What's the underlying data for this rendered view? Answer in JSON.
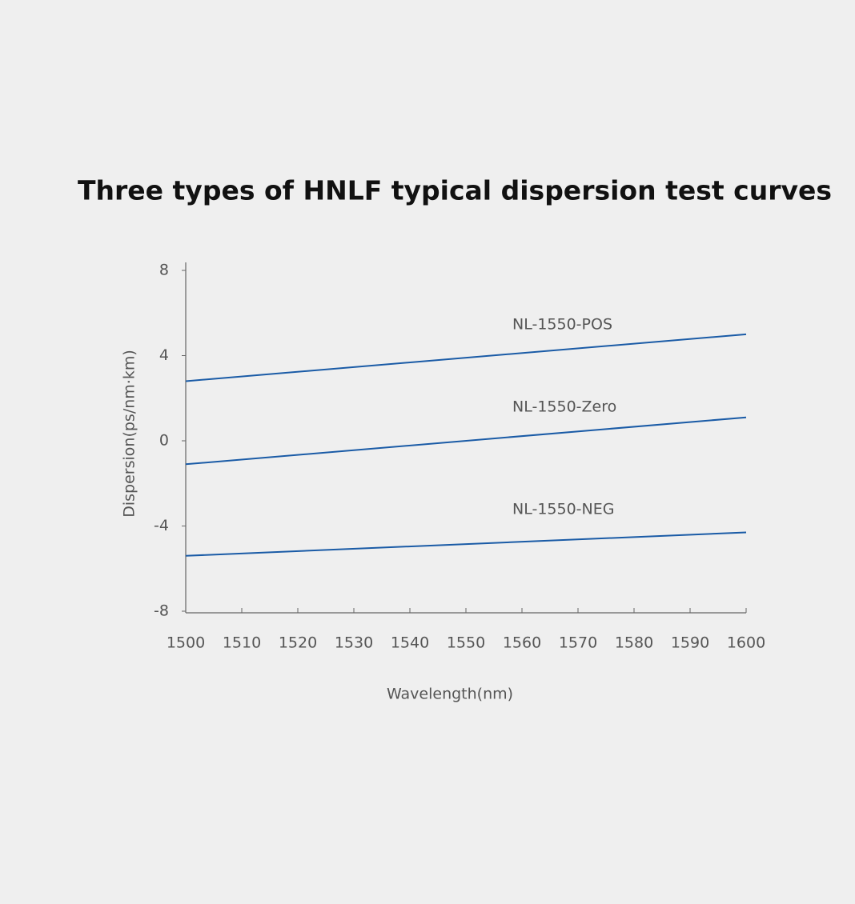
{
  "chart_data": {
    "type": "line",
    "title": "Three types of HNLF typical dispersion test curves",
    "x_label": "Wavelength(nm)",
    "y_label": "Dispersion(ps/nm·km)",
    "x": [
      1500,
      1600
    ],
    "series": [
      {
        "name": "NL-1550-POS",
        "color": "#1a5ba6",
        "values": [
          2.8,
          5.0
        ]
      },
      {
        "name": "NL-1550-Zero",
        "color": "#1a5ba6",
        "values": [
          -1.1,
          1.1
        ]
      },
      {
        "name": "NL-1550-NEG",
        "color": "#1a5ba6",
        "values": [
          -5.4,
          -4.3
        ]
      }
    ],
    "xlim": [
      1500,
      1600
    ],
    "xticks": [
      1500,
      1510,
      1520,
      1530,
      1540,
      1550,
      1560,
      1570,
      1580,
      1590,
      1600
    ],
    "ylim": [
      -8,
      8
    ],
    "yticks": [
      8,
      4,
      0,
      -4,
      -8
    ],
    "grid": false
  }
}
